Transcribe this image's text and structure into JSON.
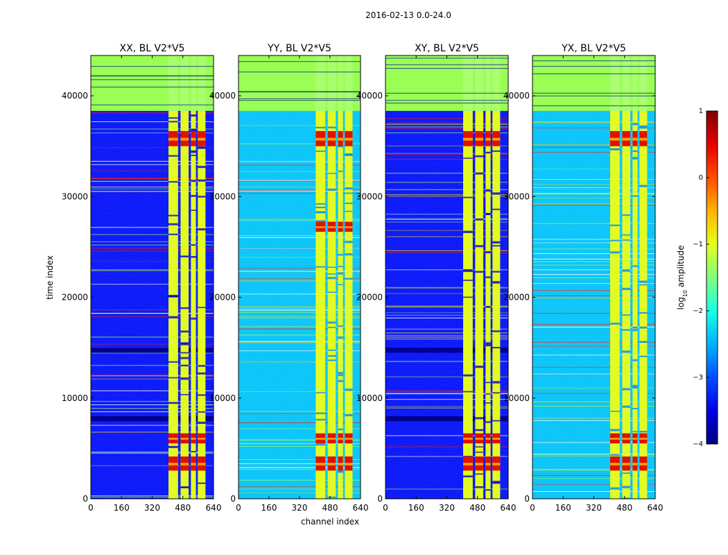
{
  "figure": {
    "suptitle": "2016-02-13 0.0-24.0",
    "ylabel": "time index",
    "xlabel": "channel index"
  },
  "colors": {
    "masked": "#99ff55",
    "deep_blue": "#00008f",
    "red": "#ff2000"
  },
  "colorbar": {
    "label_prefix": "log",
    "label_sub": "10",
    "label_suffix": " amplitude",
    "range": [
      -4,
      1
    ],
    "ticks": [
      "1",
      "0",
      "−1",
      "−2",
      "−3",
      "−4"
    ],
    "tick_values": [
      1,
      0,
      -1,
      -2,
      -3,
      -4
    ],
    "colormap": "jet"
  },
  "chart_data": [
    {
      "type": "heatmap",
      "title": "XX, BL V2*V5",
      "xlabel": "",
      "ylabel": "time index",
      "xlim": [
        0,
        640
      ],
      "ylim": [
        0,
        44000
      ],
      "x_ticks": [
        "0",
        "160",
        "320",
        "480",
        "640"
      ],
      "x_tick_values": [
        0,
        160,
        320,
        480,
        640
      ],
      "y_ticks": [
        "0",
        "10000",
        "20000",
        "30000",
        "40000"
      ],
      "y_tick_values": [
        0,
        10000,
        20000,
        30000,
        40000
      ],
      "masked_time_above": 38500,
      "background_log_amp": -3.3,
      "band_channels": [
        [
          405,
          455
        ],
        [
          468,
          510
        ],
        [
          522,
          548
        ],
        [
          558,
          598
        ]
      ],
      "band_log_amp": -1.0,
      "hot_rows": [
        [
          35000,
          36500
        ],
        [
          5500,
          6500
        ],
        [
          2800,
          4200
        ]
      ],
      "dark_rows": [
        [
          14500,
          15000
        ],
        [
          7700,
          8200
        ]
      ]
    },
    {
      "type": "heatmap",
      "title": "YY, BL V2*V5",
      "xlabel": "channel index",
      "ylabel": "",
      "xlim": [
        0,
        640
      ],
      "ylim": [
        0,
        44000
      ],
      "x_ticks": [
        "0",
        "160",
        "320",
        "480",
        "640"
      ],
      "x_tick_values": [
        0,
        160,
        320,
        480,
        640
      ],
      "y_ticks": [
        "0",
        "10000",
        "20000",
        "30000",
        "40000"
      ],
      "y_tick_values": [
        0,
        10000,
        20000,
        30000,
        40000
      ],
      "masked_time_above": 38500,
      "background_log_amp": -2.4,
      "band_channels": [
        [
          405,
          455
        ],
        [
          468,
          510
        ],
        [
          522,
          548
        ],
        [
          558,
          598
        ]
      ],
      "band_log_amp": -1.0,
      "hot_rows": [
        [
          35000,
          36500
        ],
        [
          26500,
          27500
        ],
        [
          5500,
          6500
        ],
        [
          2800,
          4200
        ]
      ],
      "dark_rows": []
    },
    {
      "type": "heatmap",
      "title": "XY, BL V2*V5",
      "xlabel": "",
      "ylabel": "",
      "xlim": [
        0,
        640
      ],
      "ylim": [
        0,
        44000
      ],
      "x_ticks": [
        "0",
        "160",
        "320",
        "480",
        "640"
      ],
      "x_tick_values": [
        0,
        160,
        320,
        480,
        640
      ],
      "y_ticks": [
        "0",
        "10000",
        "20000",
        "30000",
        "40000"
      ],
      "y_tick_values": [
        0,
        10000,
        20000,
        30000,
        40000
      ],
      "masked_time_above": 38500,
      "background_log_amp": -3.3,
      "band_channels": [
        [
          405,
          455
        ],
        [
          468,
          510
        ],
        [
          522,
          548
        ],
        [
          558,
          598
        ]
      ],
      "band_log_amp": -1.0,
      "hot_rows": [
        [
          35000,
          36500
        ],
        [
          5500,
          6500
        ],
        [
          2800,
          4200
        ]
      ],
      "dark_rows": [
        [
          14500,
          15000
        ],
        [
          7700,
          8200
        ]
      ]
    },
    {
      "type": "heatmap",
      "title": "YX, BL V2*V5",
      "xlabel": "",
      "ylabel": "",
      "xlim": [
        0,
        640
      ],
      "ylim": [
        0,
        44000
      ],
      "x_ticks": [
        "0",
        "160",
        "320",
        "480",
        "640"
      ],
      "x_tick_values": [
        0,
        160,
        320,
        480,
        640
      ],
      "y_ticks": [
        "0",
        "10000",
        "20000",
        "30000",
        "40000"
      ],
      "y_tick_values": [
        0,
        10000,
        20000,
        30000,
        40000
      ],
      "masked_time_above": 38500,
      "background_log_amp": -2.4,
      "band_channels": [
        [
          405,
          455
        ],
        [
          468,
          510
        ],
        [
          522,
          548
        ],
        [
          558,
          598
        ]
      ],
      "band_log_amp": -1.0,
      "hot_rows": [
        [
          35000,
          36500
        ],
        [
          5500,
          6500
        ],
        [
          2800,
          4200
        ]
      ],
      "dark_rows": []
    }
  ]
}
